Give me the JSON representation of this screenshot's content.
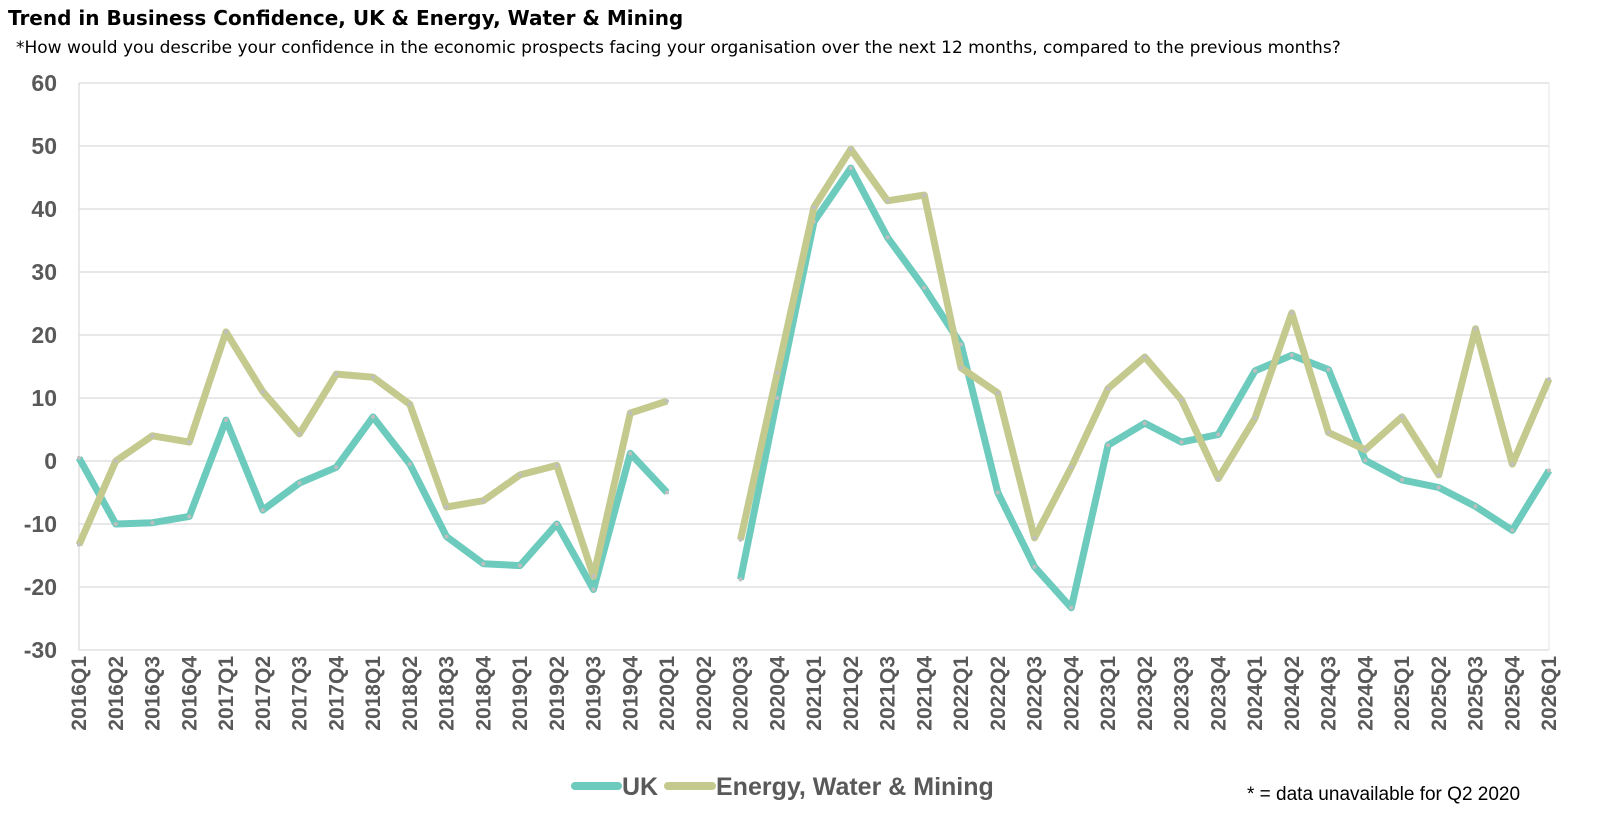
{
  "chart_data": {
    "type": "line",
    "title": "Trend in Business Confidence, UK & Energy, Water & Mining",
    "subtitle": "*How would you describe your confidence in the economic prospects facing your organisation over the next 12 months, compared to the previous months?",
    "xlabel": "",
    "ylabel": "",
    "ylim": [
      -30,
      60
    ],
    "yticks": [
      "60",
      "50",
      "40",
      "30",
      "20",
      "10",
      "0",
      "-10",
      "-20",
      "-30"
    ],
    "grid": true,
    "legend_position": "bottom",
    "note": "* = data unavailable for Q2 2020",
    "categories": [
      "2016Q1",
      "2016Q2",
      "2016Q3",
      "2016Q4",
      "2017Q1",
      "2017Q2",
      "2017Q3",
      "2017Q4",
      "2018Q1",
      "2018Q2",
      "2018Q3",
      "2018Q4",
      "2019Q1",
      "2019Q2",
      "2019Q3",
      "2019Q4",
      "2020Q1",
      "2020Q2",
      "2020Q3",
      "2020Q4",
      "2021Q1",
      "2021Q2",
      "2021Q3",
      "2021Q4",
      "2022Q1",
      "2022Q2",
      "2022Q3",
      "2022Q4",
      "2023Q1",
      "2023Q2",
      "2023Q3",
      "2023Q4",
      "2024Q1",
      "2024Q2",
      "2024Q3",
      "2024Q4",
      "2025Q1",
      "2025Q2",
      "2025Q3",
      "2025Q4",
      "2026Q1"
    ],
    "series": [
      {
        "name": "UK",
        "color": "#6ccbbd",
        "values": [
          0.5,
          -10,
          -9.8,
          -8.8,
          6.5,
          -7.8,
          -3.5,
          -1,
          7,
          -0.5,
          -12,
          -16.3,
          -16.6,
          -10,
          -20.4,
          1.2,
          -5,
          null,
          -18.8,
          10,
          38,
          46.5,
          35.5,
          27.5,
          18.5,
          -5,
          -16.8,
          -23.3,
          2.5,
          6,
          3,
          4.2,
          14.3,
          16.8,
          14.5,
          0.1,
          -3,
          -4.2,
          -7.2,
          -11,
          -1.5
        ]
      },
      {
        "name": "Energy, Water & Mining",
        "color": "#c4c98e",
        "values": [
          -13.3,
          0,
          4,
          3,
          20.5,
          11,
          4.3,
          13.8,
          13.3,
          9,
          -7.3,
          -6.3,
          -2.2,
          -0.7,
          -18.3,
          7.6,
          9.5,
          null,
          -12.5,
          14,
          40.3,
          49.5,
          41.3,
          42.2,
          14.8,
          10.8,
          -12.2,
          -1,
          11.5,
          16.5,
          9.7,
          -2.8,
          6.8,
          23.5,
          4.5,
          1.8,
          7,
          -2.2,
          21,
          -0.5,
          13
        ]
      }
    ]
  }
}
